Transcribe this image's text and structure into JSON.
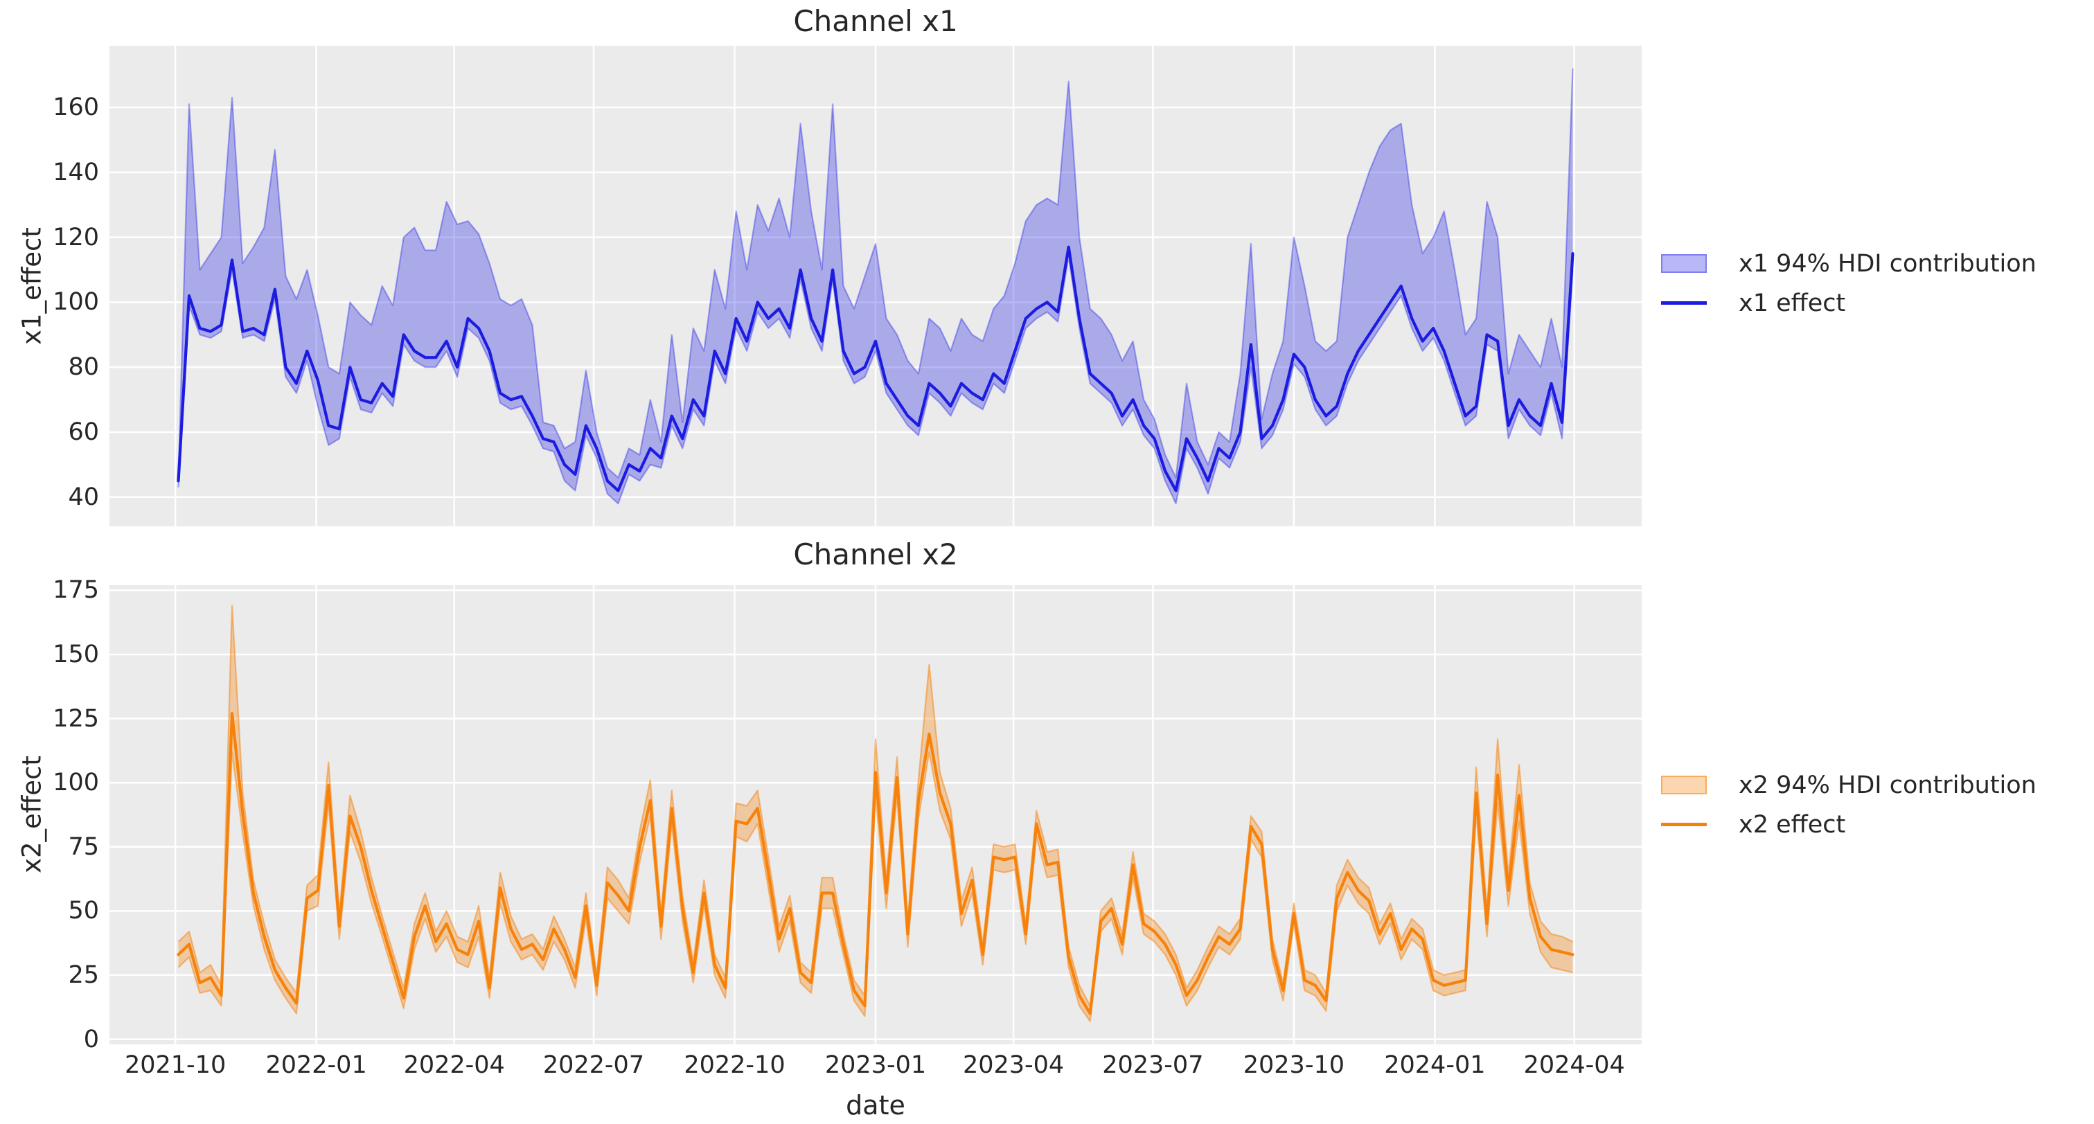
{
  "figure": {
    "background": "#ffffff",
    "axes_background": "#ebebeb",
    "grid_color": "#ffffff",
    "text_color": "#262626"
  },
  "chart_data": [
    {
      "type": "line",
      "title": "Channel x1",
      "xlabel": "date",
      "ylabel": "x1_effect",
      "grid": true,
      "legend_position": "center right, outside axes",
      "legend": [
        "x1 94% HDI contribution",
        "x1 effect"
      ],
      "colors": {
        "line": "#1c1ce0",
        "band_fill": "rgba(20,20,230,0.30)",
        "band_edge": "rgba(20,20,230,0.35)"
      },
      "x_start": "2021-10-03",
      "x_step_days": 7,
      "x_tick_labels": [
        "2021-10",
        "2022-01",
        "2022-04",
        "2022-07",
        "2022-10",
        "2023-01",
        "2023-04",
        "2023-07",
        "2023-10",
        "2024-01",
        "2024-04"
      ],
      "ylim": [
        31,
        179
      ],
      "y_ticks": [
        40,
        60,
        80,
        100,
        120,
        140,
        160
      ],
      "series": [
        {
          "name": "x1 effect",
          "role": "line",
          "values": [
            45,
            102,
            92,
            91,
            93,
            113,
            91,
            92,
            90,
            104,
            80,
            75,
            85,
            76,
            62,
            61,
            80,
            70,
            69,
            75,
            71,
            90,
            85,
            83,
            83,
            88,
            80,
            95,
            92,
            85,
            72,
            70,
            71,
            65,
            58,
            57,
            50,
            47,
            62,
            55,
            45,
            42,
            50,
            48,
            55,
            52,
            65,
            58,
            70,
            65,
            85,
            78,
            95,
            88,
            100,
            95,
            98,
            92,
            110,
            95,
            88,
            110,
            85,
            78,
            80,
            88,
            75,
            70,
            65,
            62,
            75,
            72,
            68,
            75,
            72,
            70,
            78,
            75,
            85,
            95,
            98,
            100,
            97,
            117,
            95,
            78,
            75,
            72,
            65,
            70,
            62,
            58,
            48,
            42,
            58,
            52,
            45,
            55,
            52,
            60,
            87,
            58,
            62,
            70,
            84,
            80,
            70,
            65,
            68,
            78,
            85,
            90,
            95,
            100,
            105,
            95,
            88,
            92,
            85,
            75,
            65,
            68,
            90,
            88,
            62,
            70,
            65,
            62,
            75,
            63,
            115
          ]
        },
        {
          "name": "x1 94% HDI upper",
          "role": "band_top",
          "values": [
            46,
            161,
            110,
            115,
            120,
            163,
            112,
            117,
            123,
            147,
            108,
            101,
            110,
            96,
            80,
            78,
            100,
            96,
            93,
            105,
            99,
            120,
            123,
            116,
            116,
            131,
            124,
            125,
            121,
            112,
            101,
            99,
            101,
            93,
            63,
            62,
            55,
            57,
            79,
            60,
            49,
            46,
            55,
            53,
            70,
            57,
            90,
            63,
            92,
            85,
            110,
            98,
            128,
            110,
            130,
            122,
            132,
            120,
            155,
            128,
            110,
            161,
            105,
            98,
            108,
            118,
            95,
            90,
            82,
            78,
            95,
            92,
            85,
            95,
            90,
            88,
            98,
            102,
            112,
            125,
            130,
            132,
            130,
            168,
            120,
            98,
            95,
            90,
            82,
            88,
            70,
            64,
            53,
            46,
            75,
            57,
            50,
            60,
            57,
            78,
            118,
            64,
            78,
            88,
            120,
            105,
            88,
            85,
            88,
            120,
            130,
            140,
            148,
            153,
            155,
            130,
            115,
            120,
            128,
            110,
            90,
            95,
            131,
            120,
            78,
            90,
            85,
            80,
            95,
            80,
            172
          ]
        },
        {
          "name": "x1 94% HDI lower",
          "role": "band_bottom",
          "values": [
            43,
            99,
            90,
            89,
            91,
            110,
            89,
            90,
            88,
            101,
            77,
            72,
            82,
            68,
            56,
            58,
            77,
            67,
            66,
            72,
            68,
            87,
            82,
            80,
            80,
            85,
            77,
            92,
            89,
            82,
            69,
            67,
            68,
            62,
            55,
            54,
            45,
            42,
            59,
            52,
            41,
            38,
            47,
            45,
            50,
            49,
            62,
            55,
            67,
            62,
            82,
            75,
            92,
            85,
            97,
            92,
            95,
            89,
            107,
            92,
            85,
            107,
            82,
            75,
            77,
            85,
            72,
            67,
            62,
            59,
            72,
            69,
            65,
            72,
            69,
            67,
            75,
            72,
            82,
            92,
            95,
            97,
            94,
            114,
            92,
            75,
            72,
            69,
            62,
            67,
            59,
            55,
            45,
            38,
            55,
            49,
            41,
            52,
            49,
            57,
            80,
            55,
            59,
            67,
            81,
            77,
            67,
            62,
            65,
            75,
            82,
            87,
            92,
            97,
            102,
            92,
            85,
            89,
            82,
            72,
            62,
            65,
            87,
            85,
            58,
            67,
            62,
            59,
            72,
            58,
            110
          ]
        }
      ]
    },
    {
      "type": "line",
      "title": "Channel x2",
      "xlabel": "date",
      "ylabel": "x2_effect",
      "grid": true,
      "legend_position": "center right, outside axes",
      "legend": [
        "x2 94% HDI contribution",
        "x2 effect"
      ],
      "colors": {
        "line": "#f6820c",
        "band_fill": "rgba(246,130,12,0.33)",
        "band_edge": "rgba(246,130,12,0.5)"
      },
      "x_start": "2021-10-03",
      "x_step_days": 7,
      "x_tick_labels": [
        "2021-10",
        "2022-01",
        "2022-04",
        "2022-07",
        "2022-10",
        "2023-01",
        "2023-04",
        "2023-07",
        "2023-10",
        "2024-01",
        "2024-04"
      ],
      "ylim": [
        -2,
        177
      ],
      "y_ticks": [
        0,
        25,
        50,
        75,
        100,
        125,
        150,
        175
      ],
      "series": [
        {
          "name": "x2 effect",
          "role": "line",
          "values": [
            33,
            37,
            22,
            24,
            17,
            127,
            88,
            57,
            40,
            27,
            20,
            14,
            55,
            58,
            99,
            44,
            87,
            75,
            58,
            44,
            30,
            16,
            40,
            52,
            38,
            45,
            35,
            33,
            46,
            20,
            59,
            43,
            35,
            37,
            31,
            43,
            35,
            24,
            52,
            21,
            61,
            56,
            50,
            75,
            93,
            44,
            90,
            51,
            26,
            57,
            29,
            20,
            85,
            84,
            90,
            65,
            39,
            51,
            26,
            22,
            57,
            57,
            37,
            19,
            13,
            104,
            57,
            102,
            41,
            93,
            119,
            96,
            84,
            49,
            62,
            33,
            71,
            70,
            71,
            41,
            84,
            68,
            69,
            32,
            17,
            10,
            46,
            51,
            37,
            68,
            45,
            42,
            37,
            29,
            17,
            23,
            32,
            40,
            37,
            43,
            83,
            76,
            35,
            19,
            49,
            23,
            21,
            15,
            55,
            65,
            58,
            54,
            41,
            49,
            35,
            43,
            39,
            23,
            21,
            22,
            23,
            96,
            45,
            103,
            58,
            95,
            55,
            40,
            35,
            34,
            33
          ]
        },
        {
          "name": "x2 94% HDI upper",
          "role": "band_top",
          "values": [
            38,
            42,
            26,
            29,
            21,
            169,
            96,
            62,
            45,
            31,
            24,
            18,
            60,
            64,
            108,
            49,
            95,
            81,
            63,
            48,
            34,
            20,
            45,
            57,
            42,
            50,
            40,
            38,
            52,
            24,
            65,
            48,
            39,
            41,
            35,
            48,
            39,
            28,
            57,
            25,
            67,
            62,
            55,
            81,
            101,
            49,
            97,
            56,
            30,
            62,
            33,
            24,
            92,
            91,
            97,
            71,
            44,
            56,
            30,
            26,
            63,
            63,
            41,
            23,
            17,
            117,
            62,
            110,
            46,
            101,
            146,
            104,
            90,
            54,
            67,
            37,
            76,
            75,
            76,
            45,
            89,
            73,
            74,
            36,
            21,
            13,
            50,
            55,
            41,
            73,
            49,
            46,
            41,
            33,
            20,
            27,
            36,
            44,
            41,
            47,
            87,
            81,
            39,
            22,
            53,
            27,
            25,
            18,
            60,
            70,
            63,
            59,
            45,
            53,
            39,
            47,
            43,
            27,
            25,
            26,
            27,
            106,
            50,
            117,
            64,
            107,
            61,
            46,
            41,
            40,
            38
          ]
        },
        {
          "name": "x2 94% HDI lower",
          "role": "band_bottom",
          "values": [
            28,
            32,
            18,
            19,
            13,
            112,
            80,
            52,
            35,
            23,
            16,
            10,
            50,
            52,
            92,
            39,
            81,
            69,
            53,
            40,
            26,
            12,
            35,
            47,
            34,
            40,
            30,
            28,
            40,
            16,
            53,
            38,
            31,
            33,
            27,
            38,
            31,
            20,
            47,
            17,
            55,
            50,
            45,
            69,
            87,
            39,
            84,
            46,
            22,
            52,
            25,
            16,
            79,
            77,
            84,
            59,
            34,
            46,
            22,
            18,
            51,
            51,
            33,
            15,
            9,
            95,
            51,
            95,
            36,
            86,
            112,
            89,
            78,
            44,
            57,
            29,
            66,
            65,
            66,
            37,
            79,
            63,
            64,
            28,
            13,
            7,
            42,
            47,
            33,
            63,
            41,
            38,
            33,
            25,
            13,
            19,
            28,
            36,
            33,
            39,
            78,
            71,
            31,
            15,
            45,
            19,
            17,
            11,
            50,
            60,
            53,
            49,
            37,
            45,
            31,
            39,
            35,
            19,
            17,
            18,
            19,
            88,
            40,
            92,
            52,
            85,
            49,
            34,
            28,
            27,
            26
          ]
        }
      ]
    }
  ]
}
